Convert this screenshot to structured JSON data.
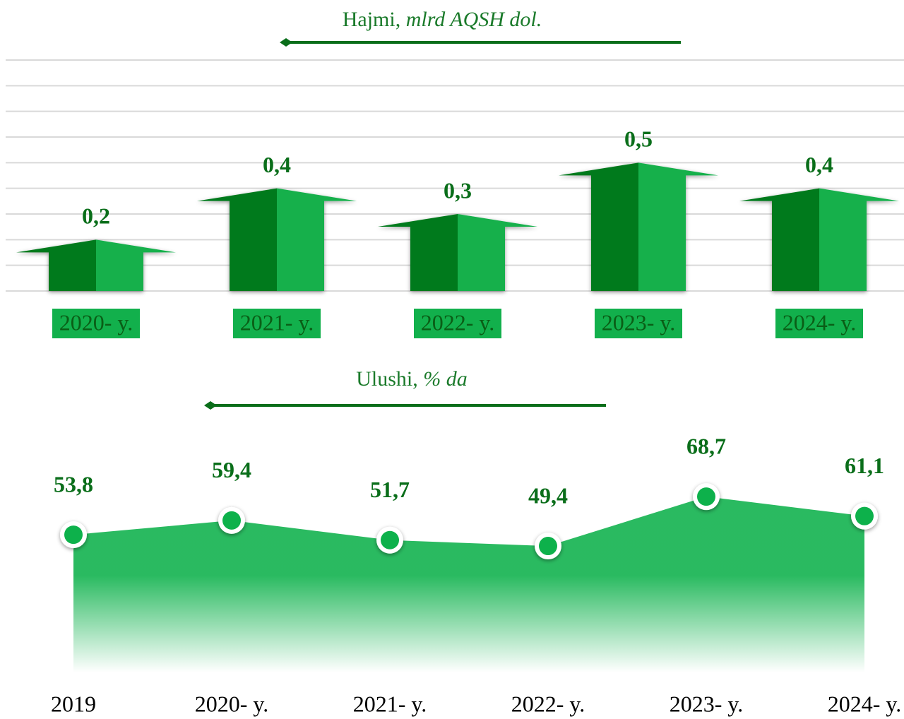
{
  "chart_data": [
    {
      "type": "arrowbar",
      "title": "Hajmi,",
      "subtitle": "mlrd AQSH dol.",
      "categories": [
        "2020- y.",
        "2021- y.",
        "2022- y.",
        "2023- y.",
        "2024- y."
      ],
      "values": [
        0.2,
        0.4,
        0.3,
        0.5,
        0.4
      ],
      "value_labels": [
        "0,2",
        "0,4",
        "0,3",
        "0,5",
        "0,4"
      ],
      "colors": [
        "#007a1e",
        "#12b04c"
      ],
      "ylim": [
        0,
        0.9
      ],
      "yticks": [
        0,
        0.1,
        0.2,
        0.3,
        0.4,
        0.5,
        0.6,
        0.7,
        0.8,
        0.9
      ],
      "grid": true
    },
    {
      "type": "area",
      "title": "Ulushi,",
      "subtitle": "% da",
      "categories": [
        "2019",
        "2020- y.",
        "2021- y.",
        "2022- y.",
        "2023- y.",
        "2024- y."
      ],
      "values": [
        53.8,
        59.4,
        51.7,
        49.4,
        68.7,
        61.1
      ],
      "value_labels": [
        "53,8",
        "59,4",
        "51,7",
        "49,4",
        "68,7",
        "61,1"
      ],
      "color": "#0db14b",
      "ylim": [
        0,
        90
      ]
    }
  ]
}
